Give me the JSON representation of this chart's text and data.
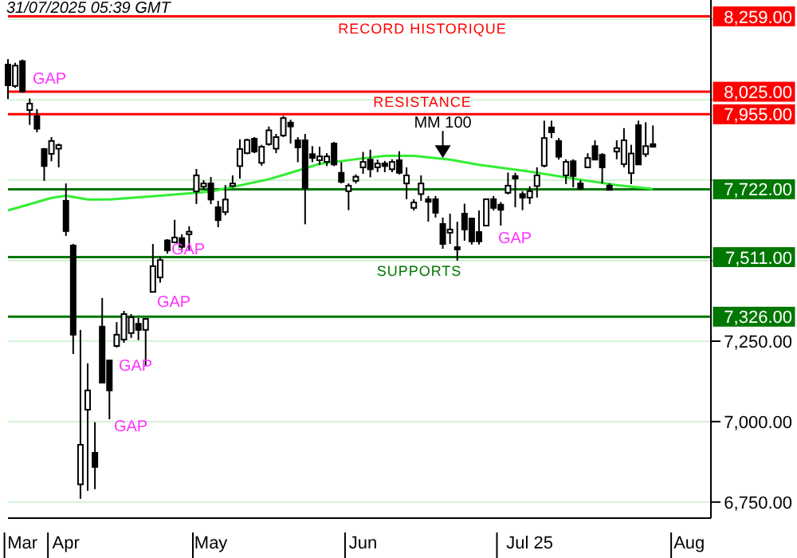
{
  "chart_data": {
    "type": "candlestick",
    "title": "31/07/2025 05:39 GMT",
    "categories": [
      null,
      null,
      "Mar",
      null,
      null,
      null,
      null,
      null,
      "Apr",
      null,
      null,
      null,
      null,
      null,
      null,
      null,
      null,
      null,
      null,
      null,
      null,
      null,
      null,
      null,
      null,
      null,
      null,
      null,
      "May",
      null,
      null,
      null,
      null,
      null,
      null,
      null,
      null,
      null,
      null,
      null,
      null,
      null,
      null,
      null,
      null,
      null,
      null,
      null,
      null,
      "Jun",
      null,
      null,
      null,
      null,
      null,
      null,
      null,
      null,
      null,
      null,
      null,
      null,
      null,
      null,
      null,
      null,
      null,
      null,
      null,
      null,
      null,
      null,
      "Jul 25",
      null,
      null,
      null,
      null,
      null,
      null,
      null,
      null,
      null,
      null,
      null,
      null,
      null,
      null,
      null,
      null,
      null,
      null,
      null,
      null,
      null,
      "Aug",
      null,
      null,
      null
    ],
    "ohlc": [
      [
        8109,
        8126,
        8002,
        8045
      ],
      [
        8043,
        8115,
        8037,
        8106
      ],
      [
        8120,
        8125,
        8022,
        8026
      ],
      [
        7968,
        8004,
        7922,
        7988
      ],
      [
        7949,
        7971,
        7899,
        7910
      ],
      [
        7847,
        7850,
        7748,
        7794
      ],
      [
        7832,
        7884,
        7809,
        7872
      ],
      [
        7848,
        7864,
        7790,
        7859
      ],
      [
        7686,
        7740,
        7577,
        7592
      ],
      [
        7547,
        7552,
        7210,
        7270
      ],
      [
        6805,
        7285,
        6760,
        6928
      ],
      [
        7037,
        7181,
        6785,
        7097
      ],
      [
        6903,
        6998,
        6790,
        6859
      ],
      [
        7295,
        7384,
        7121,
        7121
      ],
      [
        7190,
        7190,
        7007,
        7097
      ],
      [
        7235,
        7309,
        7230,
        7270
      ],
      [
        7255,
        7344,
        7245,
        7334
      ],
      [
        7275,
        7334,
        7260,
        7324
      ],
      [
        7304,
        7322,
        7253,
        7285
      ],
      [
        7285,
        7322,
        7174,
        7319
      ],
      [
        7403,
        7552,
        7403,
        7483
      ],
      [
        7448,
        7512,
        7432,
        7502
      ],
      [
        7563,
        7567,
        7522,
        7532
      ],
      [
        7557,
        7627,
        7557,
        7572
      ],
      [
        7570,
        7582,
        7527,
        7543
      ],
      [
        7582,
        7607,
        7532,
        7590
      ],
      [
        7715,
        7785,
        7676,
        7765
      ],
      [
        7730,
        7750,
        7720,
        7740
      ],
      [
        7740,
        7760,
        7676,
        7690
      ],
      [
        7666,
        7686,
        7604,
        7626
      ],
      [
        7651,
        7735,
        7641,
        7690
      ],
      [
        7732,
        7765,
        7728,
        7740
      ],
      [
        7794,
        7877,
        7755,
        7847
      ],
      [
        7834,
        7879,
        7831,
        7875
      ],
      [
        7879,
        7884,
        7834,
        7839
      ],
      [
        7804,
        7860,
        7795,
        7854
      ],
      [
        7862,
        7917,
        7857,
        7905
      ],
      [
        7848,
        7894,
        7834,
        7884
      ],
      [
        7889,
        7950,
        7884,
        7943
      ],
      [
        7929,
        7938,
        7864,
        7917
      ],
      [
        7874,
        7884,
        7806,
        7852
      ],
      [
        7874,
        7894,
        7613,
        7725
      ],
      [
        7831,
        7856,
        7806,
        7819
      ],
      [
        7812,
        7854,
        7797,
        7824
      ],
      [
        7807,
        7834,
        7794,
        7824
      ],
      [
        7864,
        7869,
        7794,
        7799
      ],
      [
        7773,
        7806,
        7740,
        7745
      ],
      [
        7716,
        7740,
        7657,
        7733
      ],
      [
        7748,
        7768,
        7740,
        7761
      ],
      [
        7790,
        7838,
        7770,
        7807
      ],
      [
        7814,
        7845,
        7759,
        7784
      ],
      [
        7790,
        7814,
        7775,
        7802
      ],
      [
        7802,
        7810,
        7775,
        7794
      ],
      [
        7784,
        7815,
        7775,
        7807
      ],
      [
        7812,
        7840,
        7768,
        7773
      ],
      [
        7740,
        7790,
        7691,
        7765
      ],
      [
        7664,
        7691,
        7656,
        7681
      ],
      [
        7707,
        7765,
        7686,
        7740
      ],
      [
        7691,
        7701,
        7621,
        7683
      ],
      [
        7691,
        7701,
        7634,
        7649
      ],
      [
        7614,
        7634,
        7537,
        7552
      ],
      [
        7587,
        7646,
        7552,
        7597
      ],
      [
        7542,
        7621,
        7500,
        7535
      ],
      [
        7646,
        7677,
        7562,
        7597
      ],
      [
        7631,
        7631,
        7550,
        7560
      ],
      [
        7589,
        7656,
        7550,
        7560
      ],
      [
        7609,
        7691,
        7609,
        7691
      ],
      [
        7691,
        7701,
        7656,
        7664
      ],
      [
        7674,
        7682,
        7609,
        7658
      ],
      [
        7711,
        7774,
        7706,
        7733
      ],
      [
        7763,
        7773,
        7666,
        7755
      ],
      [
        7707,
        7716,
        7657,
        7696
      ],
      [
        7696,
        7731,
        7676,
        7716
      ],
      [
        7732,
        7790,
        7696,
        7765
      ],
      [
        7795,
        7935,
        7790,
        7881
      ],
      [
        7914,
        7935,
        7881,
        7899
      ],
      [
        7872,
        7881,
        7814,
        7823
      ],
      [
        7765,
        7815,
        7738,
        7807
      ],
      [
        7809,
        7815,
        7728,
        7763
      ],
      [
        7740,
        7750,
        7720,
        7724
      ],
      [
        7790,
        7834,
        7790,
        7819
      ],
      [
        7856,
        7874,
        7814,
        7814
      ],
      [
        7829,
        7834,
        7740,
        7790
      ],
      [
        7733,
        7740,
        7720,
        7720
      ],
      [
        7839,
        7874,
        7815,
        7850
      ],
      [
        7800,
        7912,
        7790,
        7874
      ],
      [
        7772,
        7860,
        7738,
        7833
      ],
      [
        7921,
        7935,
        7799,
        7799
      ],
      [
        7831,
        7930,
        7822,
        7856
      ],
      [
        7862,
        7920,
        7854,
        7854
      ],
      null,
      null,
      null,
      null,
      null,
      null,
      null,
      null
    ],
    "series": [
      {
        "type": "line",
        "name": "MM 100",
        "color": "#33ee33",
        "values": [
          7656,
          null,
          null,
          null,
          7682,
          null,
          7695,
          null,
          7702,
          null,
          null,
          7690,
          null,
          null,
          7690,
          null,
          null,
          null,
          null,
          null,
          null,
          7702,
          null,
          null,
          null,
          null,
          null,
          null,
          7715,
          null,
          null,
          null,
          null,
          null,
          null,
          null,
          7753,
          null,
          null,
          7773,
          null,
          null,
          null,
          7801,
          null,
          null,
          null,
          null,
          null,
          7818,
          null,
          null,
          7826,
          null,
          null,
          null,
          7826,
          null,
          null,
          null,
          null,
          7814,
          null,
          null,
          null,
          7798,
          null,
          null,
          null,
          null,
          null,
          null,
          7777,
          null,
          null,
          null,
          null,
          null,
          null,
          null,
          7748,
          null,
          null,
          null,
          7735,
          null,
          null,
          null,
          null,
          7723,
          null,
          null,
          null,
          null,
          null,
          null,
          null,
          null
        ]
      }
    ],
    "ylim": [
      6700,
      8310
    ],
    "yticks": [
      {
        "value": 6750,
        "label": "6,750.00"
      },
      {
        "value": 7000,
        "label": "7,000.00"
      },
      {
        "value": 7250,
        "label": "7,250.00"
      },
      {
        "value": 7500,
        "label": null
      },
      {
        "value": 7750,
        "label": null
      },
      {
        "value": 8000,
        "label": null
      },
      {
        "value": 8250,
        "label": null
      }
    ],
    "grid": "y",
    "ref_lines": [
      {
        "axis": "y",
        "value": 8259,
        "label": "8,259.00",
        "color": "#ff0000"
      },
      {
        "axis": "y",
        "value": 8025,
        "label": "8,025.00",
        "color": "#ff0000"
      },
      {
        "axis": "y",
        "value": 7955,
        "label": "7,955.00",
        "color": "#ff0000"
      },
      {
        "axis": "y",
        "value": 7722,
        "label": "7,722.00",
        "color": "#007700"
      },
      {
        "axis": "y",
        "value": 7511,
        "label": "7,511.00",
        "color": "#007700"
      },
      {
        "axis": "y",
        "value": 7326,
        "label": "7,326.00",
        "color": "#007700"
      }
    ],
    "annotations": [
      "RECORD HISTORIQUE",
      "RESISTANCE",
      "SUPPORTS",
      "GAP",
      "GAP",
      "GAP",
      "GAP",
      "GAP",
      "GAP"
    ]
  }
}
